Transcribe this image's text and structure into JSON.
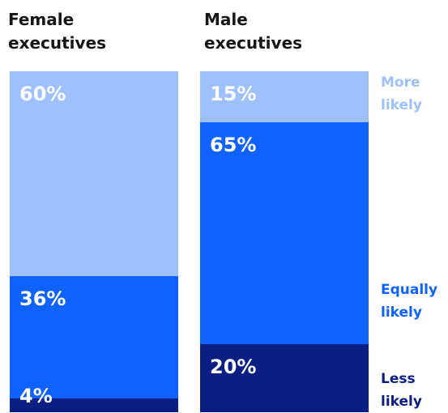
{
  "chart_data": {
    "type": "bar",
    "stacked": true,
    "percent": true,
    "categories": [
      "Female\nexecutives",
      "Male\nexecutives"
    ],
    "series": [
      {
        "name": "More\nlikely",
        "color": "#9ec0ff",
        "values": [
          60,
          15
        ]
      },
      {
        "name": "Equally\nlikely",
        "color": "#0f62fe",
        "values": [
          36,
          65
        ]
      },
      {
        "name": "Less\nlikely",
        "color": "#0b1e82",
        "values": [
          4,
          20
        ]
      }
    ],
    "data_labels": [
      [
        "60%",
        "15%"
      ],
      [
        "36%",
        "65%"
      ],
      [
        "4%",
        "20%"
      ]
    ],
    "legend_placement": "right",
    "ylim": [
      0,
      100
    ]
  }
}
